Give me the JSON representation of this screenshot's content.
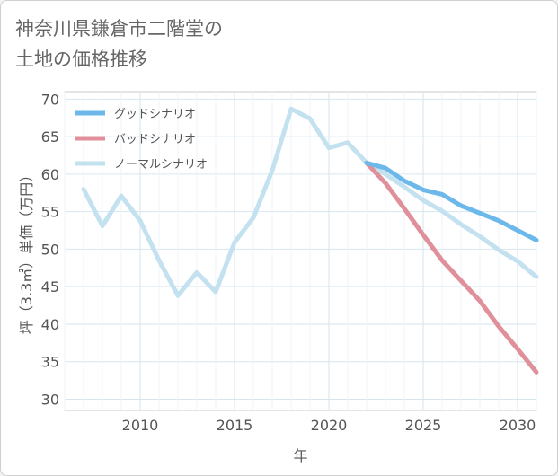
{
  "title_line1": "神奈川県鎌倉市二階堂の",
  "title_line2": "土地の価格推移",
  "chart_data": {
    "type": "line",
    "title": "神奈川県鎌倉市二階堂の土地の価格推移",
    "xlabel": "年",
    "ylabel": "坪（3.3㎡）単価（万円）",
    "xlim": [
      2006,
      2031
    ],
    "ylim": [
      28.5,
      71
    ],
    "xticks": [
      2010,
      2015,
      2020,
      2025,
      2030
    ],
    "yticks": [
      30,
      35,
      40,
      45,
      50,
      55,
      60,
      65,
      70
    ],
    "grid": true,
    "legend_position": "top-left",
    "series": [
      {
        "name": "グッドシナリオ",
        "color": "#6cb8ea",
        "x": [
          2022,
          2023,
          2024,
          2025,
          2026,
          2027,
          2028,
          2029,
          2030,
          2031
        ],
        "y": [
          61.5,
          60.8,
          59.1,
          57.9,
          57.3,
          55.8,
          54.8,
          53.8,
          52.5,
          51.2
        ]
      },
      {
        "name": "バッドシナリオ",
        "color": "#e0909a",
        "x": [
          2022,
          2023,
          2024,
          2025,
          2026,
          2027,
          2028,
          2029,
          2030,
          2031
        ],
        "y": [
          61.5,
          58.8,
          55.4,
          51.9,
          48.5,
          45.8,
          43.1,
          39.7,
          36.7,
          33.6
        ]
      },
      {
        "name": "ノーマルシナリオ",
        "color": "#c3e1ef",
        "x": [
          2007,
          2008,
          2009,
          2010,
          2011,
          2012,
          2013,
          2014,
          2015,
          2016,
          2017,
          2018,
          2019,
          2020,
          2021,
          2022,
          2023,
          2024,
          2025,
          2026,
          2027,
          2028,
          2029,
          2030,
          2031
        ],
        "y": [
          58.0,
          53.1,
          57.1,
          53.8,
          48.5,
          43.8,
          46.9,
          44.3,
          50.9,
          54.2,
          60.5,
          68.7,
          67.4,
          63.5,
          64.2,
          61.5,
          60.0,
          58.3,
          56.5,
          55.1,
          53.3,
          51.7,
          49.9,
          48.4,
          46.3
        ]
      }
    ]
  }
}
